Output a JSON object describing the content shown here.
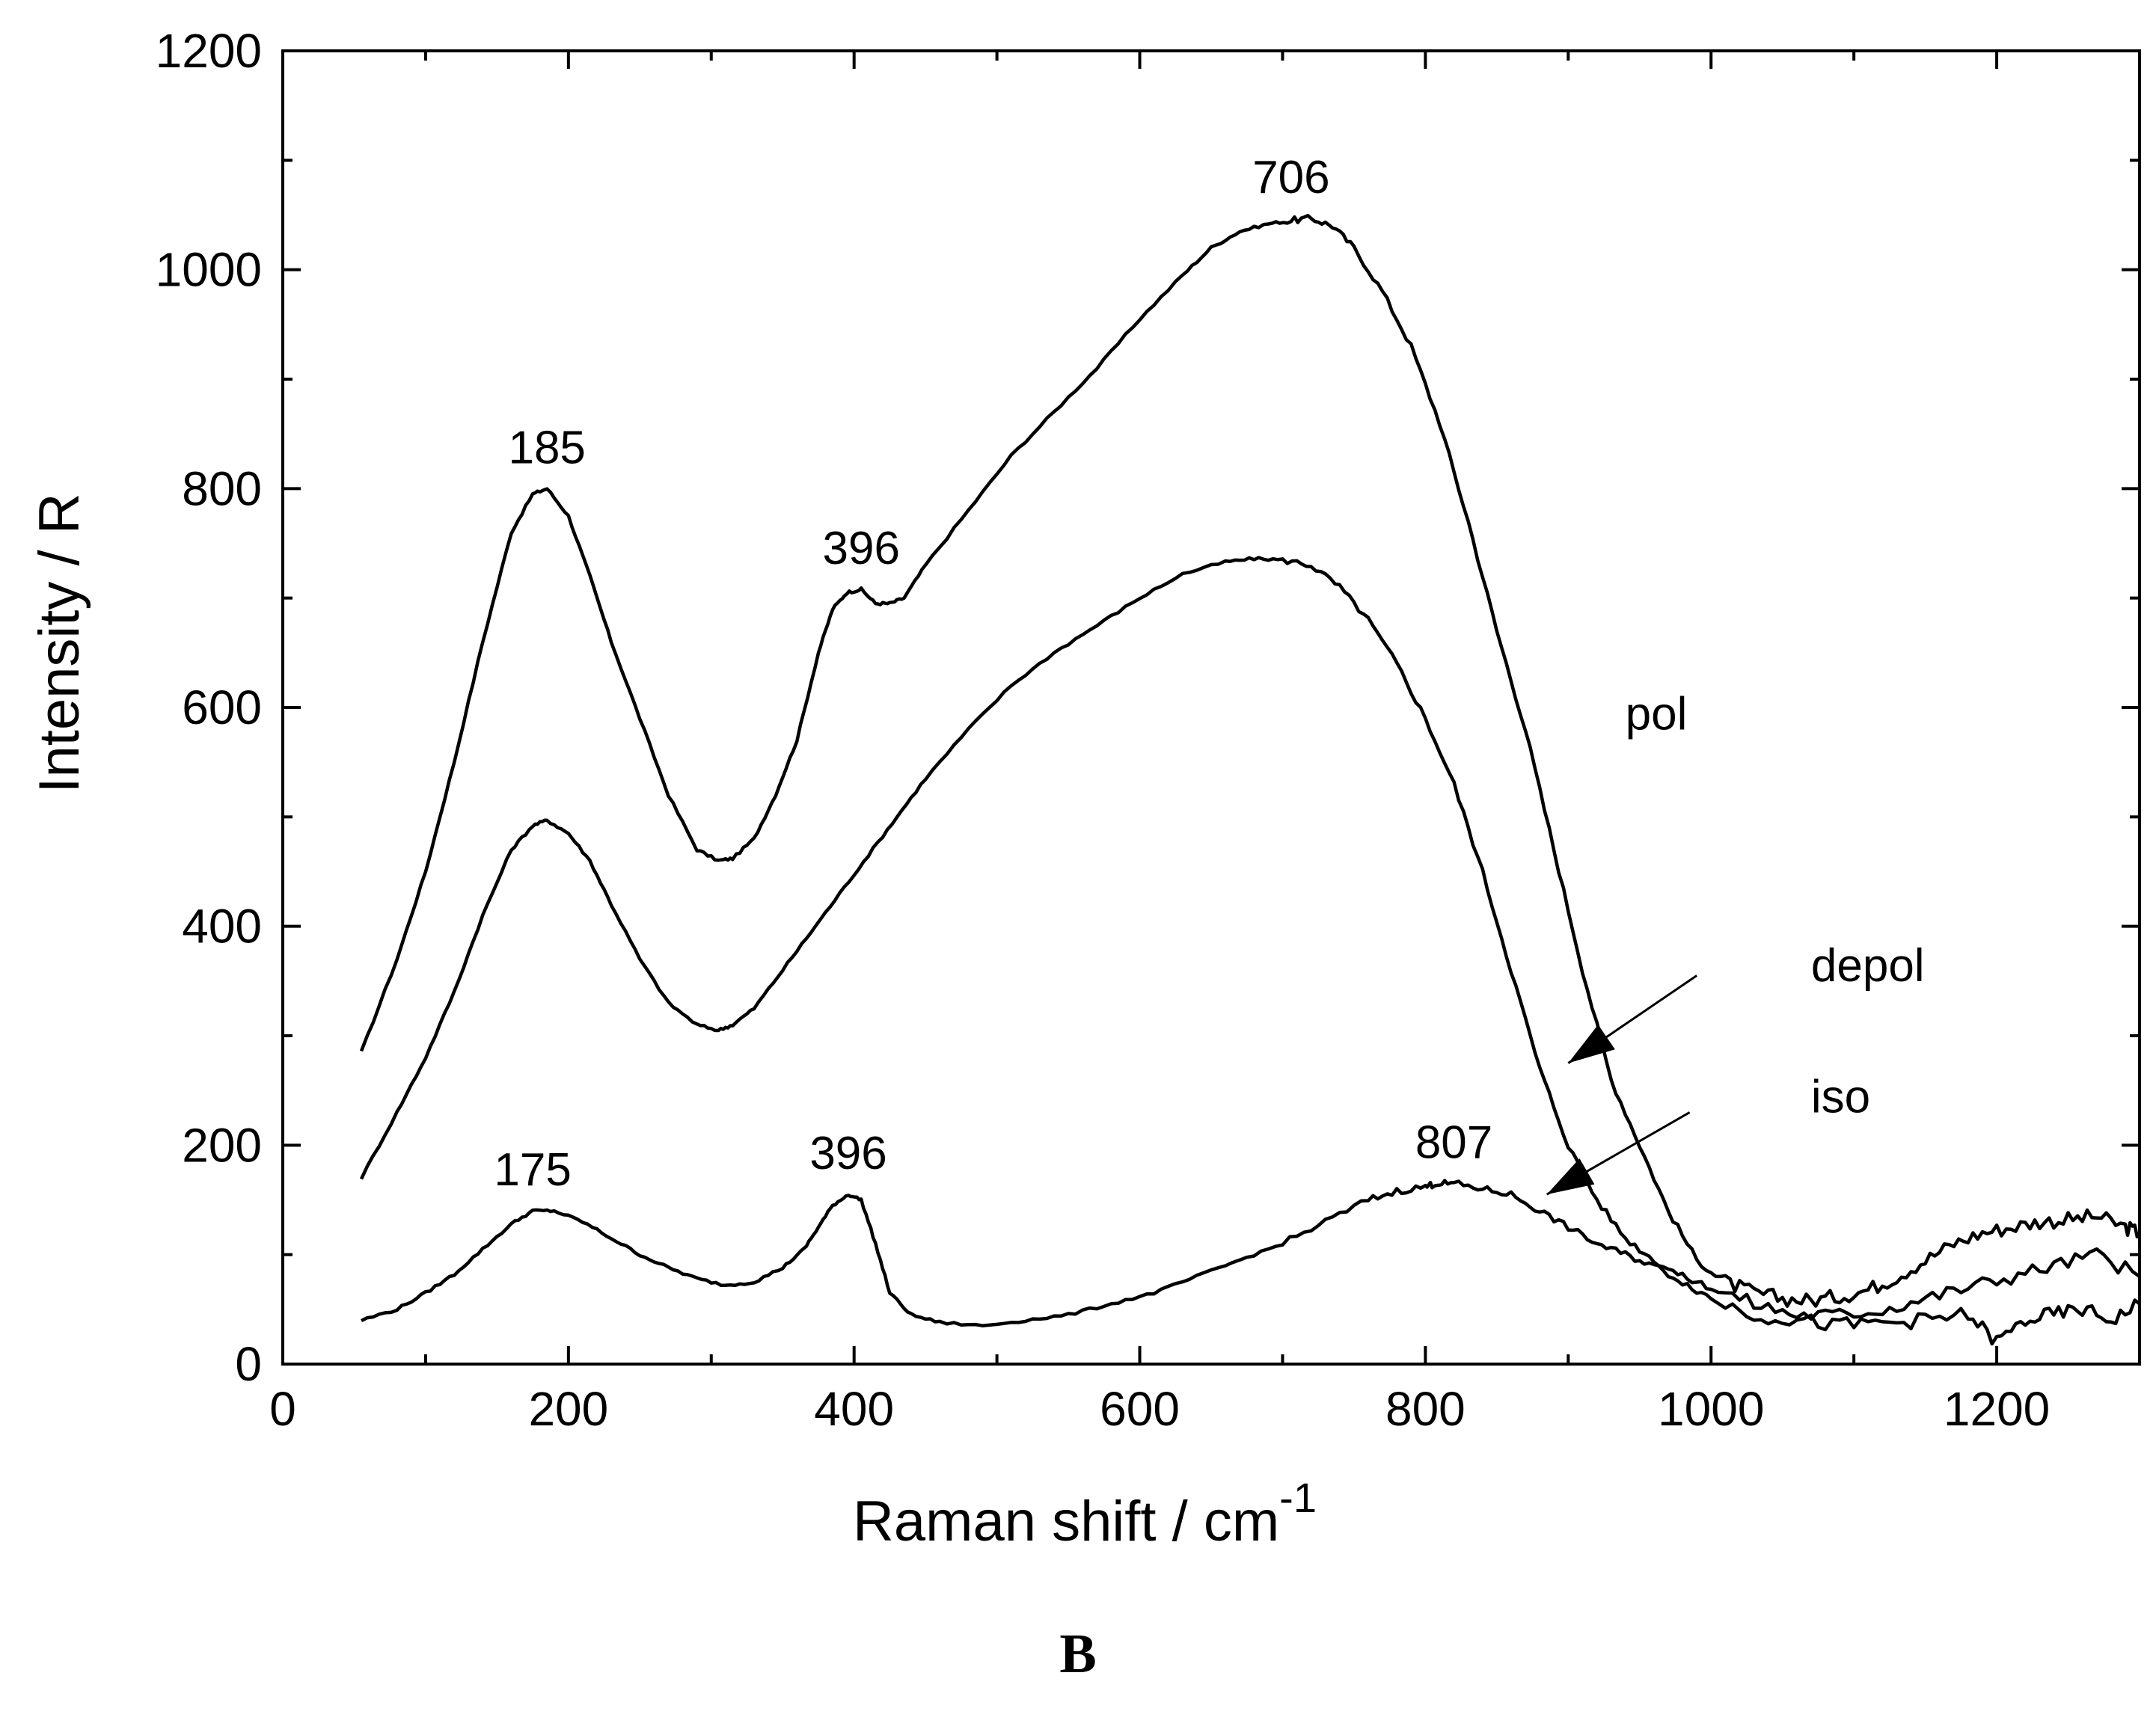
{
  "chart_data": {
    "type": "line",
    "title": "",
    "xlabel": "Raman shift / cm",
    "xlabel_superscript": "-1",
    "ylabel": "Intensity / R",
    "xlim": [
      0,
      1300
    ],
    "ylim": [
      0,
      1200
    ],
    "xticks": [
      0,
      200,
      400,
      600,
      800,
      1000,
      1200
    ],
    "yticks": [
      0,
      200,
      400,
      600,
      800,
      1000,
      1200
    ],
    "grid": false,
    "series": [
      {
        "name": "pol",
        "x": [
          55,
          80,
          100,
          120,
          140,
          160,
          175,
          185,
          200,
          215,
          230,
          250,
          270,
          290,
          305,
          315,
          330,
          345,
          360,
          375,
          385,
          395,
          405,
          415,
          425,
          435,
          450,
          480,
          510,
          540,
          570,
          600,
          630,
          650,
          670,
          690,
          706,
          720,
          735,
          750,
          770,
          790,
          810,
          830,
          850,
          870,
          890,
          910,
          930,
          950,
          970,
          990,
          1010,
          1030,
          1050,
          1070,
          1090,
          1110,
          1130,
          1150,
          1170,
          1190,
          1210,
          1230,
          1250,
          1270,
          1290,
          1300
        ],
        "y": [
          285,
          370,
          450,
          550,
          660,
          760,
          795,
          800,
          775,
          720,
          660,
          590,
          520,
          470,
          460,
          462,
          480,
          520,
          570,
          650,
          690,
          705,
          708,
          695,
          695,
          700,
          730,
          780,
          830,
          870,
          910,
          955,
          995,
          1020,
          1035,
          1042,
          1045,
          1047,
          1040,
          1020,
          980,
          930,
          860,
          770,
          670,
          580,
          470,
          360,
          260,
          200,
          140,
          95,
          75,
          65,
          60,
          58,
          62,
          68,
          80,
          95,
          110,
          120,
          125,
          130,
          132,
          135,
          125,
          120
        ]
      },
      {
        "name": "depol",
        "x": [
          55,
          80,
          100,
          120,
          140,
          160,
          175,
          185,
          200,
          215,
          230,
          250,
          270,
          290,
          305,
          315,
          330,
          350,
          370,
          390,
          410,
          430,
          450,
          480,
          510,
          540,
          570,
          600,
          630,
          660,
          680,
          700,
          720,
          740,
          760,
          780,
          800,
          820,
          840,
          860,
          880,
          900,
          920,
          940,
          960,
          980,
          1000,
          1030,
          1060,
          1090,
          1120,
          1150,
          1180,
          1210,
          1240,
          1270,
          1300
        ],
        "y": [
          170,
          230,
          280,
          340,
          410,
          470,
          492,
          497,
          485,
          460,
          420,
          370,
          330,
          310,
          305,
          310,
          325,
          360,
          395,
          430,
          465,
          500,
          535,
          580,
          620,
          650,
          675,
          700,
          722,
          733,
          736,
          735,
          730,
          710,
          680,
          640,
          590,
          530,
          450,
          360,
          270,
          200,
          150,
          115,
          95,
          80,
          70,
          55,
          45,
          45,
          50,
          60,
          70,
          80,
          90,
          100,
          80
        ]
      },
      {
        "name": "iso",
        "x": [
          55,
          80,
          100,
          120,
          140,
          160,
          175,
          190,
          210,
          230,
          250,
          270,
          290,
          310,
          330,
          350,
          365,
          375,
          385,
          396,
          405,
          415,
          425,
          440,
          460,
          490,
          520,
          550,
          580,
          610,
          640,
          670,
          700,
          730,
          760,
          780,
          800,
          807,
          820,
          840,
          860,
          880,
          900,
          920,
          940,
          960,
          980,
          1000,
          1030,
          1060,
          1090,
          1120,
          1150,
          1180,
          1200,
          1220,
          1240,
          1260,
          1280,
          1300
        ],
        "y": [
          40,
          50,
          65,
          82,
          105,
          128,
          140,
          140,
          130,
          115,
          100,
          88,
          78,
          72,
          75,
          88,
          105,
          125,
          145,
          155,
          150,
          110,
          65,
          45,
          38,
          35,
          40,
          45,
          55,
          65,
          80,
          95,
          110,
          130,
          150,
          158,
          162,
          165,
          165,
          160,
          155,
          140,
          125,
          110,
          100,
          90,
          75,
          60,
          45,
          40,
          35,
          38,
          40,
          45,
          20,
          40,
          45,
          50,
          40,
          55
        ]
      }
    ],
    "annotations": [
      {
        "text": "185",
        "x": 185,
        "y": 800
      },
      {
        "text": "396",
        "x": 405,
        "y": 708
      },
      {
        "text": "706",
        "x": 706,
        "y": 1047
      },
      {
        "text": "175",
        "x": 175,
        "y": 140
      },
      {
        "text": "396",
        "x": 396,
        "y": 155
      },
      {
        "text": "807",
        "x": 820,
        "y": 165
      },
      {
        "text": "pol",
        "x": 940,
        "y": 580
      },
      {
        "text": "depol",
        "x": 1070,
        "y": 350
      },
      {
        "text": "iso",
        "x": 1070,
        "y": 230
      }
    ],
    "arrows": [
      {
        "label": "depol",
        "from": [
          990,
          355
        ],
        "to": [
          900,
          275
        ]
      },
      {
        "label": "iso",
        "from": [
          985,
          230
        ],
        "to": [
          885,
          155
        ]
      }
    ],
    "panel_label": "B"
  }
}
